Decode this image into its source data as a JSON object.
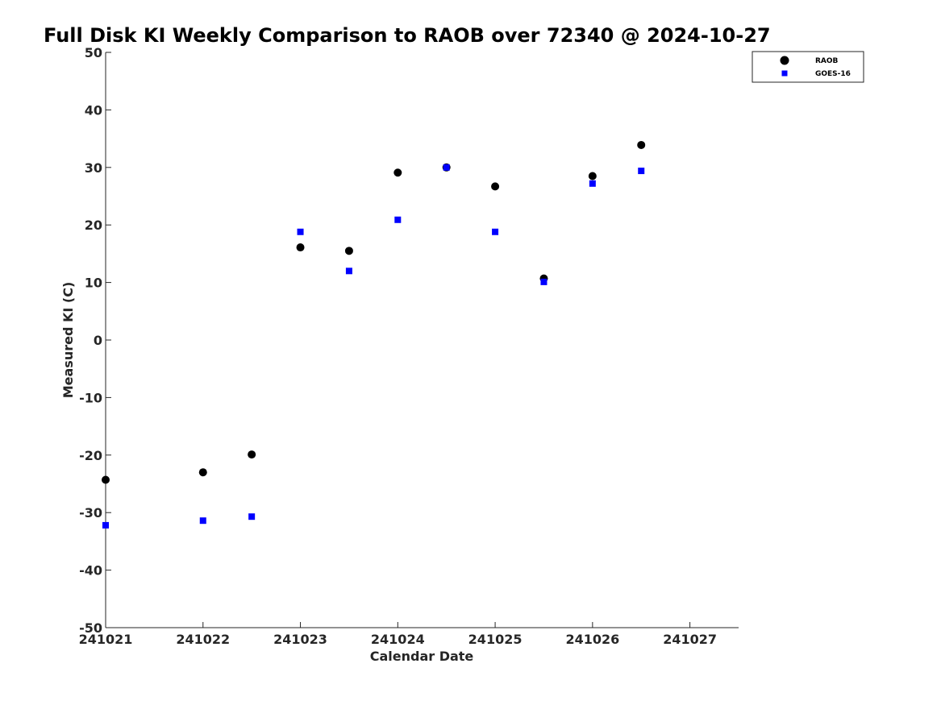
{
  "chart_data": {
    "type": "scatter",
    "title": "Full Disk KI Weekly Comparison to RAOB over 72340 @ 2024-10-27",
    "xlabel": "Calendar Date",
    "ylabel": "Measured KI (C)",
    "xlim": [
      241021,
      241027.5
    ],
    "ylim": [
      -50,
      50
    ],
    "xticks": [
      241021,
      241022,
      241023,
      241024,
      241025,
      241026,
      241027
    ],
    "xtick_labels": [
      "241021",
      "241022",
      "241023",
      "241024",
      "241025",
      "241026",
      "241027"
    ],
    "yticks": [
      50,
      40,
      30,
      20,
      10,
      0,
      -10,
      -20,
      -30,
      -40,
      -50
    ],
    "ytick_labels": [
      "50",
      "40",
      "30",
      "20",
      "10",
      "0",
      "-10",
      "-20",
      "-30",
      "-40",
      "-50"
    ],
    "grid": false,
    "legend_position": "top-right",
    "series": [
      {
        "name": "RAOB",
        "marker": "circle",
        "color": "#000000",
        "x": [
          241021,
          241022,
          241022.5,
          241023,
          241023.5,
          241024,
          241024.5,
          241025,
          241025.5,
          241026,
          241026.5
        ],
        "y": [
          -24.3,
          -23.0,
          -19.9,
          16.1,
          15.5,
          29.1,
          30.0,
          26.7,
          10.7,
          28.5,
          33.9
        ]
      },
      {
        "name": "GOES-16",
        "marker": "square",
        "color": "#0000ff",
        "x": [
          241021,
          241022,
          241022.5,
          241023,
          241023.5,
          241024,
          241024.5,
          241025,
          241025.5,
          241026,
          241026.5
        ],
        "y": [
          -32.2,
          -31.4,
          -30.7,
          18.8,
          12.0,
          20.9,
          30.0,
          18.8,
          10.1,
          27.2,
          29.4
        ]
      }
    ]
  }
}
